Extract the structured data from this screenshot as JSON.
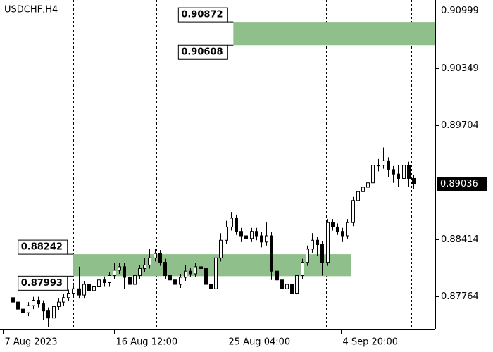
{
  "chart_data": {
    "type": "candlestick",
    "title": "USDCHF,H4",
    "candles": {
      "open": [
        0.8775,
        0.877,
        0.8762,
        0.8758,
        0.8766,
        0.8772,
        0.8768,
        0.876,
        0.8752,
        0.8765,
        0.877,
        0.8775,
        0.878,
        0.8785,
        0.8778,
        0.879,
        0.8783,
        0.8788,
        0.8795,
        0.8792,
        0.88,
        0.8806,
        0.881,
        0.8798,
        0.879,
        0.88,
        0.8808,
        0.8812,
        0.882,
        0.8825,
        0.8815,
        0.88,
        0.8795,
        0.879,
        0.8798,
        0.8805,
        0.8802,
        0.881,
        0.8808,
        0.879,
        0.8785,
        0.882,
        0.884,
        0.8855,
        0.8865,
        0.885,
        0.8845,
        0.8842,
        0.885,
        0.8845,
        0.8838,
        0.8845,
        0.8805,
        0.8795,
        0.8785,
        0.879,
        0.878,
        0.88,
        0.8815,
        0.883,
        0.884,
        0.8835,
        0.8815,
        0.886,
        0.8855,
        0.885,
        0.8845,
        0.886,
        0.8885,
        0.8895,
        0.89,
        0.8905,
        0.8925,
        0.8925,
        0.893,
        0.892,
        0.8915,
        0.891,
        0.8925,
        0.891
      ],
      "high": [
        0.8779,
        0.8774,
        0.8766,
        0.877,
        0.8776,
        0.8776,
        0.8772,
        0.8764,
        0.8769,
        0.8774,
        0.8779,
        0.8784,
        0.8789,
        0.881,
        0.8794,
        0.8794,
        0.8792,
        0.8799,
        0.8799,
        0.8804,
        0.8814,
        0.8814,
        0.8814,
        0.8802,
        0.8804,
        0.8812,
        0.882,
        0.883,
        0.883,
        0.8829,
        0.8819,
        0.8804,
        0.8799,
        0.8802,
        0.8812,
        0.8809,
        0.8814,
        0.8814,
        0.8812,
        0.8794,
        0.8824,
        0.8848,
        0.8862,
        0.8872,
        0.8869,
        0.8854,
        0.8849,
        0.8854,
        0.8854,
        0.8849,
        0.886,
        0.8849,
        0.8809,
        0.8799,
        0.8794,
        0.8794,
        0.8804,
        0.8819,
        0.8834,
        0.8848,
        0.8844,
        0.8839,
        0.8864,
        0.8864,
        0.8859,
        0.8854,
        0.8864,
        0.8889,
        0.8905,
        0.8904,
        0.891,
        0.8948,
        0.8932,
        0.8945,
        0.8934,
        0.8924,
        0.8925,
        0.894,
        0.8929,
        0.8914
      ],
      "low": [
        0.8766,
        0.8758,
        0.8745,
        0.8754,
        0.8762,
        0.8764,
        0.875,
        0.8742,
        0.8748,
        0.8761,
        0.8766,
        0.8771,
        0.8776,
        0.8774,
        0.8774,
        0.8779,
        0.8779,
        0.8784,
        0.8788,
        0.8788,
        0.8796,
        0.8802,
        0.8785,
        0.8786,
        0.8786,
        0.8796,
        0.8804,
        0.8808,
        0.8816,
        0.8811,
        0.8796,
        0.8788,
        0.8782,
        0.8786,
        0.8794,
        0.8798,
        0.8798,
        0.8804,
        0.878,
        0.8776,
        0.8781,
        0.8816,
        0.8836,
        0.8851,
        0.8846,
        0.8838,
        0.8836,
        0.8838,
        0.884,
        0.8832,
        0.8834,
        0.8795,
        0.8788,
        0.876,
        0.877,
        0.8776,
        0.8776,
        0.8796,
        0.8811,
        0.8826,
        0.8822,
        0.88,
        0.8811,
        0.8851,
        0.8846,
        0.8838,
        0.8841,
        0.8856,
        0.8881,
        0.8891,
        0.8896,
        0.8901,
        0.8918,
        0.8921,
        0.8912,
        0.8905,
        0.89,
        0.8906,
        0.89,
        0.8898
      ],
      "close": [
        0.877,
        0.8762,
        0.8758,
        0.8766,
        0.8772,
        0.8768,
        0.876,
        0.8752,
        0.8765,
        0.877,
        0.8775,
        0.878,
        0.8785,
        0.8778,
        0.879,
        0.8783,
        0.8788,
        0.8795,
        0.8792,
        0.88,
        0.8806,
        0.881,
        0.8798,
        0.879,
        0.88,
        0.8808,
        0.8812,
        0.882,
        0.8825,
        0.8815,
        0.88,
        0.8795,
        0.879,
        0.8798,
        0.8805,
        0.8802,
        0.881,
        0.8808,
        0.879,
        0.8785,
        0.882,
        0.884,
        0.8855,
        0.8865,
        0.885,
        0.8845,
        0.8842,
        0.885,
        0.8845,
        0.8838,
        0.8845,
        0.8805,
        0.8795,
        0.8785,
        0.879,
        0.878,
        0.88,
        0.8815,
        0.883,
        0.884,
        0.8835,
        0.8815,
        0.886,
        0.8855,
        0.885,
        0.8845,
        0.886,
        0.8885,
        0.8895,
        0.89,
        0.8905,
        0.8925,
        0.8925,
        0.893,
        0.892,
        0.8915,
        0.891,
        0.8925,
        0.891,
        0.8904
      ]
    },
    "xlim": [
      -2.5,
      83.3
    ],
    "ylim": [
      0.8739,
      0.9112
    ],
    "yticks": [
      0.90999,
      0.90349,
      0.89704,
      0.88414,
      0.87764
    ],
    "xticks": [
      {
        "value": -1.9,
        "label": "7 Aug 2023"
      },
      {
        "value": 20,
        "label": "16 Aug 12:00"
      },
      {
        "value": 42.2,
        "label": "25 Aug 04:00"
      },
      {
        "value": 64.7,
        "label": "4 Sep 20:00"
      }
    ],
    "separators": [
      11.9,
      28.3,
      45.1,
      61.8,
      78.6
    ],
    "current_price": 0.89036,
    "zones": [
      {
        "top": 0.90872,
        "bottom": 0.90608,
        "start": 43.5
      },
      {
        "top": 0.88242,
        "bottom": 0.87993,
        "start": 11.9,
        "end": 66.7
      }
    ],
    "zone_color": "#8fbf8a"
  }
}
